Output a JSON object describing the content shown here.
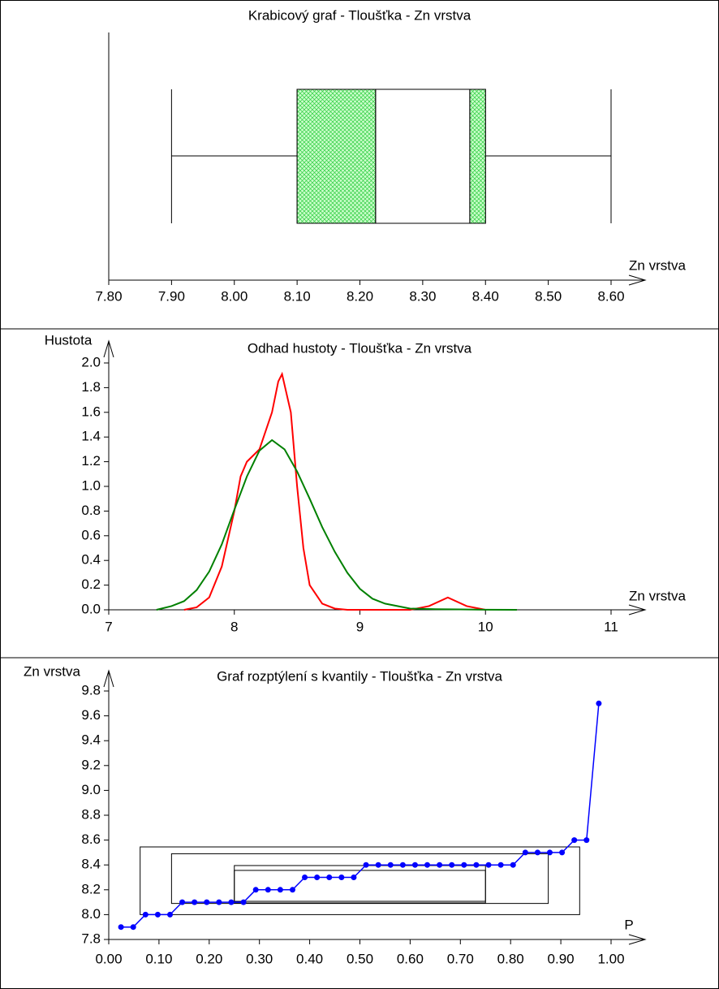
{
  "chart_data": [
    {
      "type": "box",
      "title": "Krabicový graf - Tloušťka - Zn vrstva",
      "x_label": "Zn vrstva",
      "xlim": [
        7.8,
        8.6
      ],
      "xticks": [
        {
          "value": 7.8,
          "label": "7.80"
        },
        {
          "value": 7.9,
          "label": "7.90"
        },
        {
          "value": 8.0,
          "label": "8.00"
        },
        {
          "value": 8.1,
          "label": "8.10"
        },
        {
          "value": 8.2,
          "label": "8.20"
        },
        {
          "value": 8.3,
          "label": "8.30"
        },
        {
          "value": 8.4,
          "label": "8.40"
        },
        {
          "value": 8.5,
          "label": "8.50"
        },
        {
          "value": 8.6,
          "label": "8.60"
        }
      ],
      "box": {
        "whisker_low": 7.9,
        "q1": 8.1,
        "median": 8.225,
        "notch_high": 8.375,
        "q3": 8.4,
        "whisker_high": 8.6
      },
      "color": "#2ecc40"
    },
    {
      "type": "line",
      "title": "Odhad hustoty - Tloušťka - Zn vrstva",
      "x_label": "Zn vrstva",
      "y_label": "Hustota",
      "xlim": [
        7,
        11
      ],
      "xticks": [
        7,
        8,
        9,
        10,
        11
      ],
      "ylim": [
        0,
        2.0
      ],
      "yticks": [
        {
          "value": 0,
          "label": "0.0"
        },
        0.2,
        0.4,
        0.6,
        0.8,
        {
          "value": 1,
          "label": "1.0"
        },
        1.2,
        1.4,
        1.6,
        1.8,
        {
          "value": 2,
          "label": "2.0"
        }
      ],
      "series": [
        {
          "color": "#ff0000",
          "x": [
            7.6,
            7.7,
            7.8,
            7.9,
            8.0,
            8.05,
            8.1,
            8.2,
            8.3,
            8.35,
            8.38,
            8.45,
            8.5,
            8.55,
            8.6,
            8.7,
            8.8,
            8.9,
            9.4,
            9.55,
            9.7,
            9.85,
            10.0
          ],
          "values": [
            0,
            0.02,
            0.1,
            0.35,
            0.8,
            1.08,
            1.2,
            1.3,
            1.6,
            1.85,
            1.91,
            1.6,
            1.0,
            0.5,
            0.2,
            0.05,
            0.01,
            0,
            0,
            0.03,
            0.1,
            0.03,
            0
          ]
        },
        {
          "color": "#008000",
          "x": [
            7.38,
            7.5,
            7.6,
            7.7,
            7.8,
            7.9,
            8.0,
            8.1,
            8.2,
            8.3,
            8.4,
            8.5,
            8.6,
            8.7,
            8.8,
            8.9,
            9.0,
            9.1,
            9.2,
            9.4,
            9.6,
            9.8,
            10.0,
            10.25
          ],
          "values": [
            0,
            0.03,
            0.07,
            0.16,
            0.31,
            0.53,
            0.81,
            1.08,
            1.29,
            1.375,
            1.3,
            1.12,
            0.9,
            0.67,
            0.47,
            0.3,
            0.17,
            0.09,
            0.05,
            0.01,
            0.005,
            0.003,
            0.001,
            0
          ]
        }
      ]
    },
    {
      "type": "scatter",
      "title": "Graf rozptýlení s kvantily - Tloušťka - Zn vrstva",
      "x_label": "P",
      "y_label": "Zn vrstva",
      "xlim": [
        0,
        1.0
      ],
      "xticks": [
        {
          "value": 0,
          "label": "0.00"
        },
        {
          "value": 0.1,
          "label": "0.10"
        },
        {
          "value": 0.2,
          "label": "0.20"
        },
        {
          "value": 0.3,
          "label": "0.30"
        },
        {
          "value": 0.4,
          "label": "0.40"
        },
        {
          "value": 0.5,
          "label": "0.50"
        },
        {
          "value": 0.6,
          "label": "0.60"
        },
        {
          "value": 0.7,
          "label": "0.70"
        },
        {
          "value": 0.8,
          "label": "0.80"
        },
        {
          "value": 0.9,
          "label": "0.90"
        },
        {
          "value": 1.0,
          "label": "1.00"
        }
      ],
      "ylim": [
        7.8,
        9.8
      ],
      "yticks": [
        7.8,
        {
          "value": 8,
          "label": "8.0"
        },
        8.2,
        8.4,
        8.6,
        8.8,
        {
          "value": 9,
          "label": "9.0"
        },
        9.2,
        9.4,
        9.6,
        9.8
      ],
      "color": "#0000ff",
      "x": [
        0.0244,
        0.0488,
        0.0732,
        0.0976,
        0.122,
        0.1463,
        0.1707,
        0.1951,
        0.2195,
        0.2439,
        0.2683,
        0.2927,
        0.3171,
        0.3415,
        0.3659,
        0.3902,
        0.4146,
        0.439,
        0.4634,
        0.4878,
        0.5122,
        0.5366,
        0.561,
        0.5854,
        0.6098,
        0.6341,
        0.6585,
        0.6829,
        0.7073,
        0.7317,
        0.7561,
        0.7805,
        0.8049,
        0.8293,
        0.8537,
        0.878,
        0.9024,
        0.9268,
        0.9512,
        0.9756
      ],
      "values": [
        7.9,
        7.9,
        8.0,
        8.0,
        8.0,
        8.1,
        8.1,
        8.1,
        8.1,
        8.1,
        8.1,
        8.2,
        8.2,
        8.2,
        8.2,
        8.3,
        8.3,
        8.3,
        8.3,
        8.3,
        8.4,
        8.4,
        8.4,
        8.4,
        8.4,
        8.4,
        8.4,
        8.4,
        8.4,
        8.4,
        8.4,
        8.4,
        8.4,
        8.5,
        8.5,
        8.5,
        8.5,
        8.6,
        8.6,
        9.7
      ],
      "boxes": [
        {
          "p": [
            0.0625,
            0.9375
          ],
          "q": [
            8.0,
            8.545
          ]
        },
        {
          "p": [
            0.125,
            0.875
          ],
          "q": [
            8.09,
            8.49
          ]
        },
        {
          "p": [
            0.25,
            0.75
          ],
          "q": [
            8.107,
            8.395
          ]
        },
        {
          "p": [
            0.25,
            0.75
          ],
          "q": [
            8.094,
            8.356
          ]
        }
      ]
    }
  ]
}
